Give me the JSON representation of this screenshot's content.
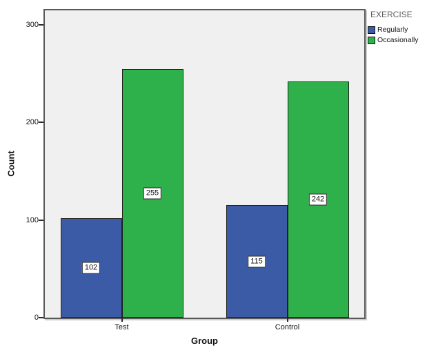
{
  "chart_data": {
    "type": "bar",
    "title": "",
    "categories": [
      "Test",
      "Control"
    ],
    "series": [
      {
        "name": "Regularly",
        "color": "#3c5ba7",
        "values": [
          102,
          115
        ]
      },
      {
        "name": "Occasionally",
        "color": "#2eb04a",
        "values": [
          255,
          242
        ]
      }
    ],
    "xlabel": "Group",
    "ylabel": "Count",
    "yticks": [
      0,
      100,
      200,
      300
    ],
    "ylim": [
      0,
      315
    ],
    "grid": false,
    "bar_labels": true,
    "legend_title": "EXERCISE",
    "legend_position": "top-right",
    "colors": {
      "plot_background": "#f0f0f0",
      "frame": "#595959",
      "bar_border": "#1f1f1f",
      "legend_title_text": "#5e5e5e",
      "axis_text": "#111111",
      "label_box_background": "#ffffff"
    }
  }
}
